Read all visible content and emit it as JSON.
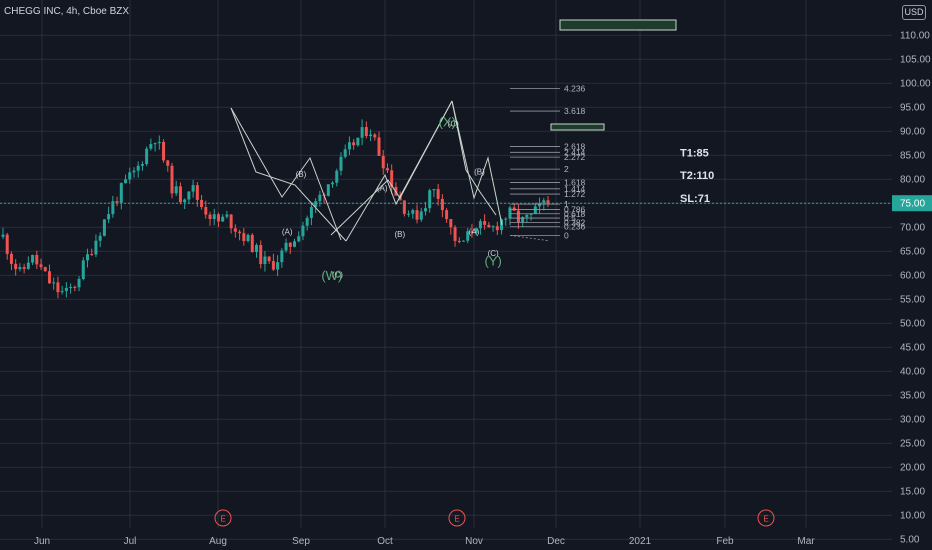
{
  "header": {
    "symbol_title": "CHEGG INC, 4h, Cboe BZX",
    "currency": "USD"
  },
  "colors": {
    "bg": "#131722",
    "grid": "#2a2e39",
    "text": "#b2b5be",
    "up": "#26a69a",
    "down": "#ef5350",
    "wave": "#c8d6cc",
    "green_label": "#5fae7a",
    "price_line": "#26a69a",
    "earnings": "#ef5350"
  },
  "chart_data": {
    "type": "candlestick",
    "title": "CHEGG INC, 4h, Cboe BZX",
    "y_axis": {
      "min": 2,
      "max": 113,
      "ticks": [
        5,
        10,
        15,
        20,
        25,
        30,
        35,
        40,
        45,
        50,
        55,
        60,
        65,
        70,
        75,
        80,
        85,
        90,
        95,
        100,
        105,
        110
      ],
      "position": "right",
      "grid": true
    },
    "x_axis": {
      "labels": [
        "Jun",
        "Jul",
        "Aug",
        "Sep",
        "Oct",
        "Nov",
        "Dec",
        "2021",
        "Feb",
        "Mar"
      ],
      "grid": true
    },
    "current_price": 75.0,
    "price_path": [
      68,
      63,
      60,
      64,
      62,
      59,
      57,
      56,
      58,
      62,
      66,
      70,
      74,
      77,
      80,
      82,
      86,
      89,
      84,
      78,
      76,
      79,
      75,
      73,
      71,
      72,
      70,
      68,
      66,
      63,
      62,
      64,
      66,
      69,
      72,
      75,
      78,
      81,
      84,
      87,
      89,
      91,
      86,
      82,
      77,
      74,
      72,
      74,
      78,
      76,
      70,
      66,
      68,
      71,
      69,
      70,
      72,
      73,
      71,
      72,
      74,
      75
    ],
    "wave_labels": [
      {
        "text": "(A)",
        "time": "Aug 26",
        "price": 68.5,
        "size": "small"
      },
      {
        "text": "(B)",
        "time": "Sep 1",
        "price": 80.5,
        "size": "small"
      },
      {
        "text": "(C)",
        "time": "Sep 14",
        "price": 59.5,
        "size": "small"
      },
      {
        "text": "(W)",
        "time": "Sep 12",
        "price": 59,
        "size": "large"
      },
      {
        "text": "(A)",
        "time": "Sep 30",
        "price": 77.5,
        "size": "small"
      },
      {
        "text": "(B)",
        "time": "Oct 6",
        "price": 68,
        "size": "small"
      },
      {
        "text": "(C)",
        "time": "Oct 24",
        "price": 91,
        "size": "small"
      },
      {
        "text": "(X)",
        "time": "Oct 22",
        "price": 91,
        "size": "large"
      },
      {
        "text": "(A)",
        "time": "Oct 31",
        "price": 68.5,
        "size": "small"
      },
      {
        "text": "(B)",
        "time": "Nov 3",
        "price": 81,
        "size": "small"
      },
      {
        "text": "(C)",
        "time": "Nov 8",
        "price": 64,
        "size": "small"
      },
      {
        "text": "(Y)",
        "time": "Nov 8",
        "price": 62,
        "size": "large"
      }
    ],
    "fib_levels": [
      {
        "label": "4.236",
        "price": 98.9
      },
      {
        "label": "3.618",
        "price": 94.2
      },
      {
        "label": "2.618",
        "price": 86.8
      },
      {
        "label": "2.414",
        "price": 85.6
      },
      {
        "label": "2.272",
        "price": 84.6
      },
      {
        "label": "2",
        "price": 82.1
      },
      {
        "label": "1.618",
        "price": 79.3
      },
      {
        "label": "1.414",
        "price": 78.0
      },
      {
        "label": "1.272",
        "price": 76.9
      },
      {
        "label": "1",
        "price": 74.8
      },
      {
        "label": "0.786",
        "price": 73.7
      },
      {
        "label": "0.618",
        "price": 72.8
      },
      {
        "label": "0.5",
        "price": 71.9
      },
      {
        "label": "0.382",
        "price": 71.0
      },
      {
        "label": "0.236",
        "price": 70.1
      },
      {
        "label": "0",
        "price": 68.3
      }
    ],
    "targets": [
      {
        "label": "T1:85",
        "price": 84.7
      },
      {
        "label": "T2:110",
        "price": 80.0
      },
      {
        "label": "SL:71",
        "price": 75.3
      }
    ],
    "earnings_marker": "E"
  }
}
